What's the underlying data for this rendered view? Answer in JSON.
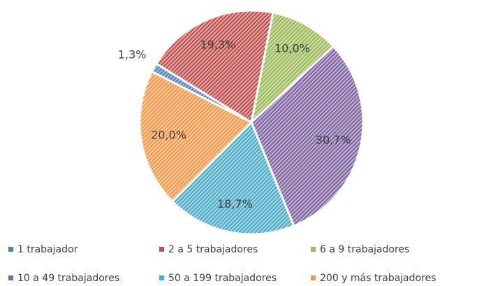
{
  "chart_data": {
    "type": "pie",
    "categories": [
      "1 trabajador",
      "2 a 5 trabajadores",
      "6 a 9 trabajadores",
      "10 a 49 trabajadores",
      "50 a 199 trabajadores",
      "200 y más trabajadores"
    ],
    "values": [
      1.3,
      19.3,
      10.0,
      30.7,
      18.7,
      20.0
    ],
    "value_labels": [
      "1,3%",
      "19,3%",
      "10,0%",
      "30,7%",
      "18,7%",
      "20,0%"
    ],
    "colors": [
      "#4f81bd",
      "#c0504d",
      "#9bbb59",
      "#8064a2",
      "#4bacc6",
      "#f79646"
    ],
    "legend": "bottom"
  }
}
